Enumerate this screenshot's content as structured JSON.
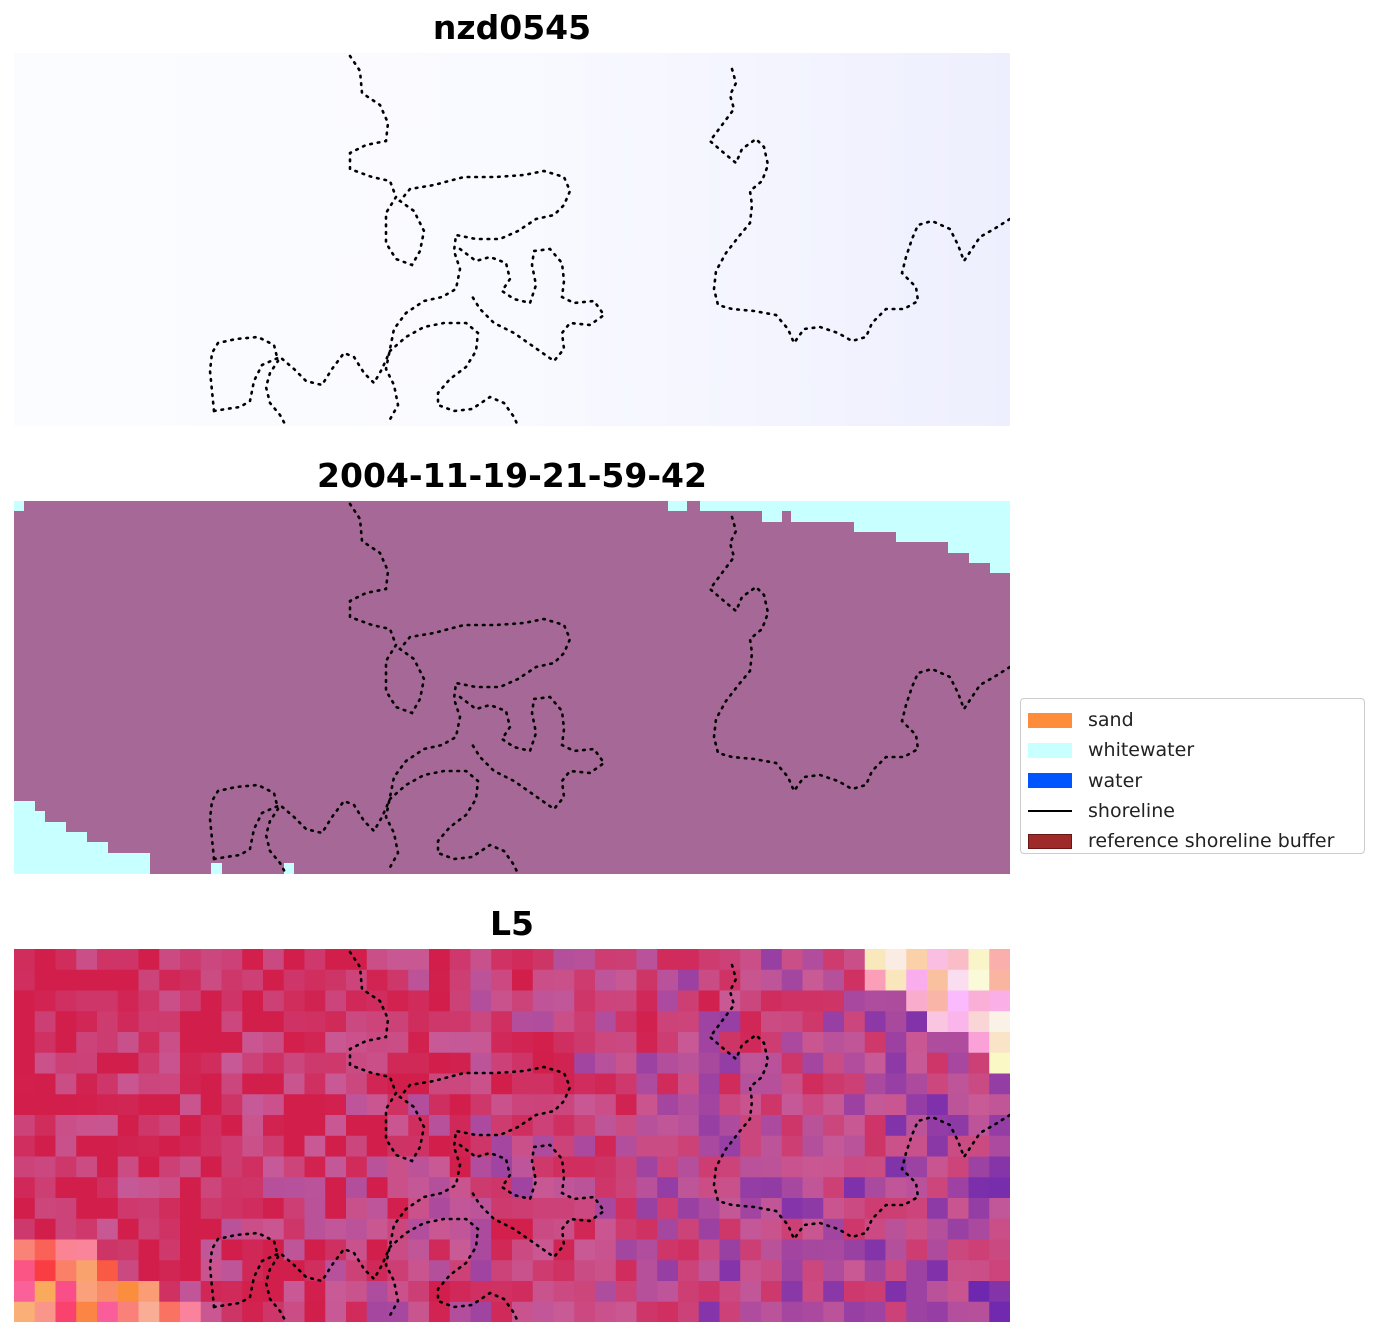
{
  "panels": [
    {
      "title": "nzd0545",
      "kind": "rgb"
    },
    {
      "title": "2004-11-19-21-59-42",
      "kind": "classification"
    },
    {
      "title": "L5",
      "kind": "index"
    }
  ],
  "legend": {
    "items": [
      {
        "label": "sand",
        "type": "patch",
        "color": "#ff8c3a"
      },
      {
        "label": "whitewater",
        "type": "patch",
        "color": "#c8ffff"
      },
      {
        "label": "water",
        "type": "patch",
        "color": "#0055ff"
      },
      {
        "label": "shoreline",
        "type": "line",
        "color": "#000000"
      },
      {
        "label": "reference shoreline buffer",
        "type": "patch",
        "color": "#9e2a2a",
        "edge": "#6b1515"
      }
    ]
  },
  "colors": {
    "rgb_background": "#f6f7ff",
    "classification_fill": "#a66896",
    "whitewater": "#c8ffff",
    "shoreline_dots": "#000000"
  }
}
